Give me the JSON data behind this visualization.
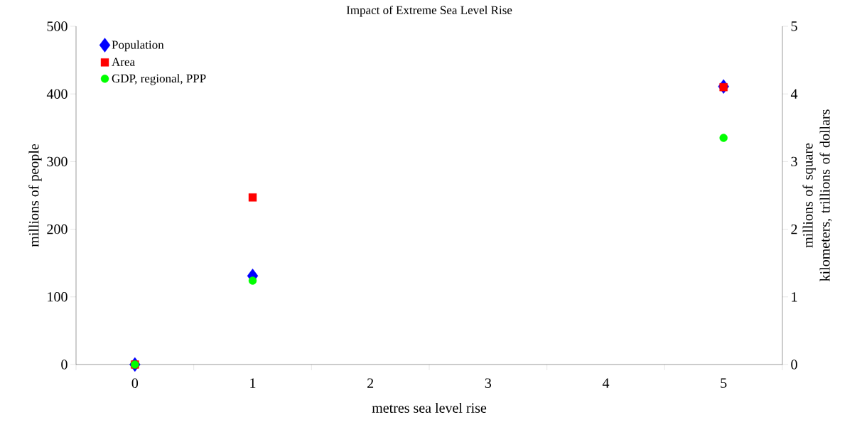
{
  "chart_data": {
    "type": "scatter",
    "title": "Impact of Extreme Sea Level Rise",
    "xlabel": "metres sea level rise",
    "ylabel": "millions of people",
    "y2label": "millions of square kilometers, trillions of dollars",
    "categories": [
      "0",
      "1",
      "2",
      "3",
      "4",
      "5"
    ],
    "series": [
      {
        "name": "Population",
        "color": "#0000ff",
        "marker": "diamond",
        "values": [
          0,
          131,
          null,
          null,
          null,
          411
        ]
      },
      {
        "name": "Area",
        "color": "#ff0000",
        "marker": "square",
        "axis": "y2",
        "values": [
          0,
          2.47,
          null,
          null,
          null,
          4.1
        ]
      },
      {
        "name": "GDP, regional, PPP",
        "color": "#00ff00",
        "marker": "circle",
        "axis": "y2",
        "values": [
          0,
          1.24,
          null,
          null,
          null,
          3.35
        ]
      }
    ],
    "ylim": [
      0,
      500
    ],
    "yticks": [
      0,
      100,
      200,
      300,
      400,
      500
    ],
    "y2lim": [
      0,
      5
    ],
    "y2ticks": [
      0,
      1,
      2,
      3,
      4,
      5
    ],
    "legend": "top left"
  }
}
